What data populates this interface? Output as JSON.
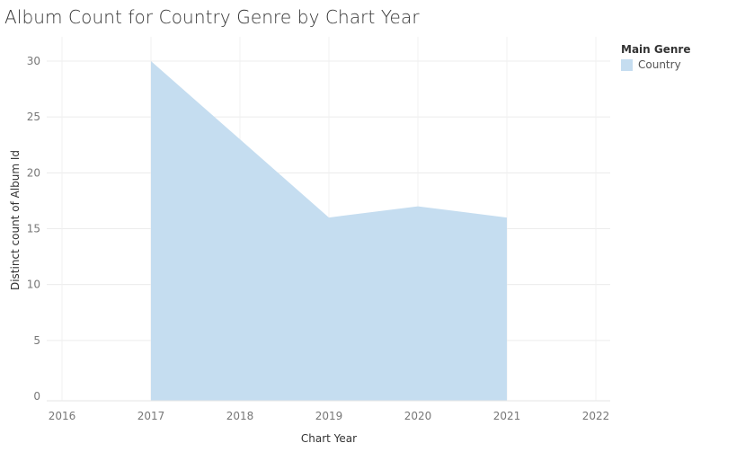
{
  "chart_data": {
    "type": "area",
    "title": "Album Count for Country Genre by Chart Year",
    "xlabel": "Chart Year",
    "ylabel": "Distinct count of Album Id",
    "x_ticks": [
      "2016",
      "2017",
      "2018",
      "2019",
      "2020",
      "2021",
      "2022"
    ],
    "y_ticks": [
      "0",
      "5",
      "10",
      "15",
      "20",
      "25",
      "30"
    ],
    "xlim": [
      2016,
      2022
    ],
    "ylim": [
      0,
      30
    ],
    "grid": true,
    "legend": {
      "title": "Main Genre",
      "position": "top-right"
    },
    "series": [
      {
        "name": "Country",
        "color": "#c5ddf0",
        "x": [
          2017,
          2018,
          2019,
          2020,
          2021
        ],
        "values": [
          30,
          23,
          16,
          17,
          16
        ]
      }
    ]
  }
}
